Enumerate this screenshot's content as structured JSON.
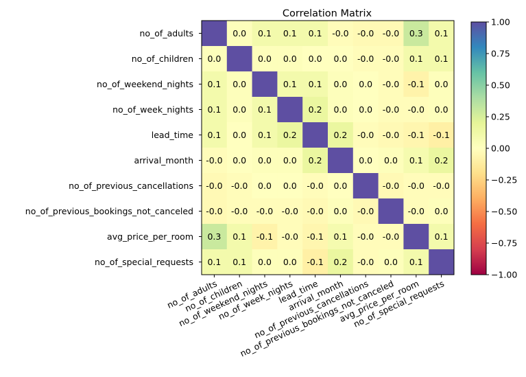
{
  "chart_data": {
    "type": "heatmap",
    "title": "Correlation Matrix",
    "labels": [
      "no_of_adults",
      "no_of_children",
      "no_of_weekend_nights",
      "no_of_week_nights",
      "lead_time",
      "arrival_month",
      "no_of_previous_cancellations",
      "no_of_previous_bookings_not_canceled",
      "avg_price_per_room",
      "no_of_special_requests"
    ],
    "values": [
      [
        1.0,
        0.02,
        0.1,
        0.1,
        0.1,
        -0.02,
        -0.04,
        -0.04,
        0.3,
        0.1
      ],
      [
        0.02,
        1.0,
        0.02,
        0.02,
        0.0,
        0.0,
        -0.02,
        -0.02,
        0.1,
        0.1
      ],
      [
        0.1,
        0.02,
        1.0,
        0.1,
        0.1,
        0.02,
        0.0,
        -0.02,
        -0.08,
        0.02
      ],
      [
        0.1,
        0.02,
        0.1,
        1.0,
        0.16,
        0.02,
        0.0,
        -0.02,
        -0.02,
        0.02
      ],
      [
        0.1,
        0.0,
        0.1,
        0.16,
        1.0,
        0.16,
        -0.02,
        -0.04,
        -0.06,
        -0.1
      ],
      [
        -0.02,
        0.0,
        0.02,
        0.02,
        0.16,
        1.0,
        0.0,
        0.02,
        0.08,
        0.16
      ],
      [
        -0.04,
        -0.02,
        0.0,
        0.0,
        -0.02,
        0.0,
        1.0,
        -0.04,
        -0.02,
        -0.02
      ],
      [
        -0.04,
        -0.02,
        -0.02,
        -0.02,
        -0.04,
        0.02,
        -0.04,
        1.0,
        -0.02,
        0.02
      ],
      [
        0.3,
        0.1,
        -0.08,
        -0.02,
        -0.06,
        0.08,
        -0.02,
        -0.02,
        1.0,
        0.1
      ],
      [
        0.1,
        0.1,
        0.02,
        0.02,
        -0.1,
        0.16,
        -0.02,
        0.02,
        0.1,
        1.0
      ]
    ],
    "display": [
      [
        "",
        "0.0",
        "0.1",
        "0.1",
        "0.1",
        "-0.0",
        "-0.0",
        "-0.0",
        "0.3",
        "0.1"
      ],
      [
        "0.0",
        "",
        "0.0",
        "0.0",
        "0.0",
        "0.0",
        "-0.0",
        "-0.0",
        "0.1",
        "0.1"
      ],
      [
        "0.1",
        "0.0",
        "",
        "0.1",
        "0.1",
        "0.0",
        "0.0",
        "-0.0",
        "-0.1",
        "0.0"
      ],
      [
        "0.1",
        "0.0",
        "0.1",
        "",
        "0.2",
        "0.0",
        "0.0",
        "-0.0",
        "-0.0",
        "0.0"
      ],
      [
        "0.1",
        "0.0",
        "0.1",
        "0.2",
        "",
        "0.2",
        "-0.0",
        "-0.0",
        "-0.1",
        "-0.1"
      ],
      [
        "-0.0",
        "0.0",
        "0.0",
        "0.0",
        "0.2",
        "",
        "0.0",
        "0.0",
        "0.1",
        "0.2"
      ],
      [
        "-0.0",
        "-0.0",
        "0.0",
        "0.0",
        "-0.0",
        "0.0",
        "",
        "-0.0",
        "-0.0",
        "-0.0"
      ],
      [
        "-0.0",
        "-0.0",
        "-0.0",
        "-0.0",
        "-0.0",
        "0.0",
        "-0.0",
        "",
        "-0.0",
        "0.0"
      ],
      [
        "0.3",
        "0.1",
        "-0.1",
        "-0.0",
        "-0.1",
        "0.1",
        "-0.0",
        "-0.0",
        "",
        "0.1"
      ],
      [
        "0.1",
        "0.1",
        "0.0",
        "0.0",
        "-0.1",
        "0.2",
        "-0.0",
        "0.0",
        "0.1",
        ""
      ]
    ],
    "colorbar": {
      "colormap": "Spectral",
      "range": [
        -1,
        1
      ],
      "ticks": [
        "1.00",
        "0.75",
        "0.50",
        "0.25",
        "0.00",
        "−0.25",
        "−0.50",
        "−0.75",
        "−1.00"
      ]
    },
    "diagonal_color": "#5e4fa2"
  }
}
